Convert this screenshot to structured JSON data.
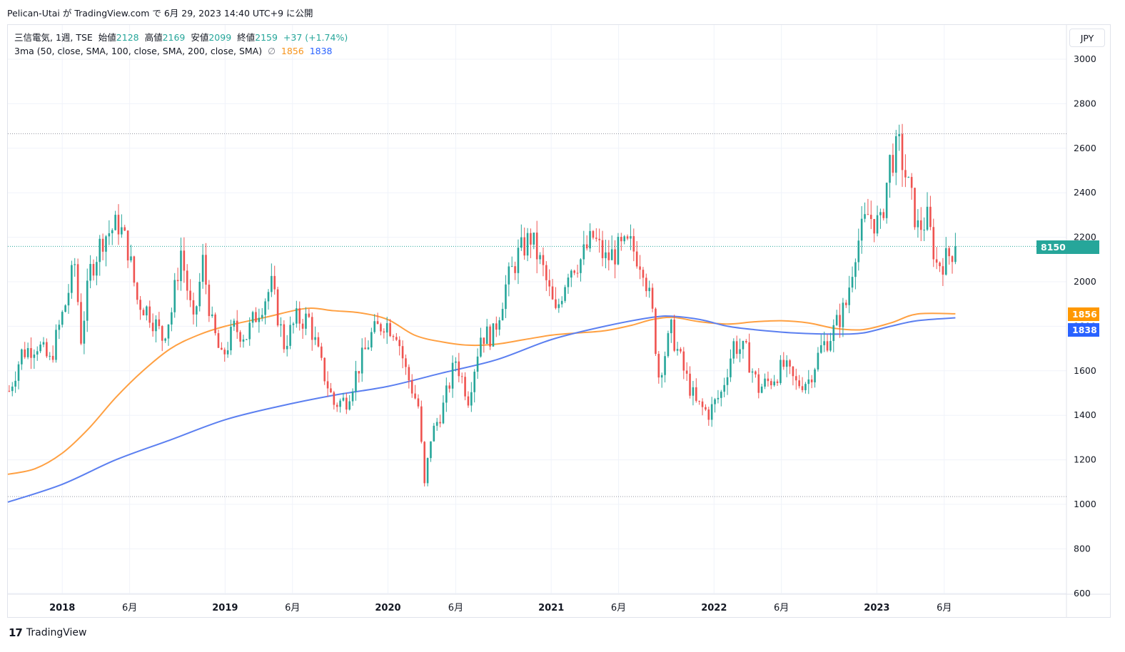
{
  "publication": "Pelican-Utai が TradingView.com で 6月 29, 2023 14:40 UTC+9 に公開",
  "legend": {
    "symbol": "三信電気, 1週, TSE",
    "open_label": "始値",
    "open": "2128",
    "high_label": "高値",
    "high": "2169",
    "low_label": "安値",
    "low": "2099",
    "close_label": "終値",
    "close": "2159",
    "change": "+37 (+1.74%)",
    "indicator": "3ma (50, close, SMA, 100, close, SMA, 200, close, SMA)",
    "hidden_icon": "∅",
    "ma100_value": "1856",
    "ma200_value": "1838"
  },
  "currency": "JPY",
  "price_tags": {
    "last_symbol": "8150",
    "last_price": "2159",
    "ma100": "1856",
    "ma200": "1838"
  },
  "brand": {
    "logo": "17",
    "name": "TradingView"
  },
  "colors": {
    "up": "#26a69a",
    "down": "#ef5350",
    "ma100": "#ffa042",
    "ma200": "#5b7ff0",
    "grid": "#f0f3fa",
    "dotted": "#9598a1"
  },
  "chart_data": {
    "type": "candlestick",
    "title": "三信電気, 1週, TSE",
    "ylim": [
      600,
      3000
    ],
    "y_ticks": [
      3000,
      2800,
      2600,
      2400,
      2200,
      2000,
      1800,
      1600,
      1400,
      1200,
      1000,
      800,
      600
    ],
    "x_ticks": [
      {
        "date": "2018-01-01",
        "label": "2018",
        "bold": true
      },
      {
        "date": "2018-06-01",
        "label": "6月",
        "bold": false
      },
      {
        "date": "2019-01-01",
        "label": "2019",
        "bold": true
      },
      {
        "date": "2019-06-01",
        "label": "6月",
        "bold": false
      },
      {
        "date": "2020-01-01",
        "label": "2020",
        "bold": true
      },
      {
        "date": "2020-06-01",
        "label": "6月",
        "bold": false
      },
      {
        "date": "2021-01-01",
        "label": "2021",
        "bold": true
      },
      {
        "date": "2021-06-01",
        "label": "6月",
        "bold": false
      },
      {
        "date": "2022-01-01",
        "label": "2022",
        "bold": true
      },
      {
        "date": "2022-06-01",
        "label": "6月",
        "bold": false
      },
      {
        "date": "2023-01-01",
        "label": "2023",
        "bold": true
      },
      {
        "date": "2023-06-01",
        "label": "6月",
        "bold": false
      }
    ],
    "x_range": [
      "2017-09-01",
      "2024-03-01"
    ],
    "horizontal_levels": [
      2665,
      1035
    ],
    "last_price": 2159,
    "ohlc_path": [
      [
        "2017-09-04",
        1510
      ],
      [
        "2017-10-02",
        1680
      ],
      [
        "2017-11-06",
        1720
      ],
      [
        "2017-12-04",
        1640
      ],
      [
        "2018-01-08",
        1900
      ],
      [
        "2018-01-29",
        2080
      ],
      [
        "2018-02-12",
        1750
      ],
      [
        "2018-03-05",
        2050
      ],
      [
        "2018-04-02",
        2200
      ],
      [
        "2018-05-07",
        2260
      ],
      [
        "2018-05-28",
        2150
      ],
      [
        "2018-06-18",
        1920
      ],
      [
        "2018-07-16",
        1860
      ],
      [
        "2018-08-13",
        1750
      ],
      [
        "2018-09-03",
        1870
      ],
      [
        "2018-09-24",
        2140
      ],
      [
        "2018-10-22",
        1800
      ],
      [
        "2018-11-12",
        2090
      ],
      [
        "2018-12-03",
        1800
      ],
      [
        "2018-12-24",
        1650
      ],
      [
        "2019-01-21",
        1790
      ],
      [
        "2019-02-18",
        1760
      ],
      [
        "2019-03-18",
        1880
      ],
      [
        "2019-04-15",
        1980
      ],
      [
        "2019-05-13",
        1720
      ],
      [
        "2019-06-10",
        1830
      ],
      [
        "2019-07-08",
        1830
      ],
      [
        "2019-08-05",
        1620
      ],
      [
        "2019-09-02",
        1450
      ],
      [
        "2019-09-30",
        1470
      ],
      [
        "2019-10-28",
        1620
      ],
      [
        "2019-11-25",
        1760
      ],
      [
        "2019-12-23",
        1820
      ],
      [
        "2020-01-20",
        1780
      ],
      [
        "2020-02-10",
        1600
      ],
      [
        "2020-03-09",
        1440
      ],
      [
        "2020-03-23",
        1080
      ],
      [
        "2020-04-06",
        1300
      ],
      [
        "2020-05-04",
        1440
      ],
      [
        "2020-06-01",
        1650
      ],
      [
        "2020-06-29",
        1480
      ],
      [
        "2020-07-27",
        1760
      ],
      [
        "2020-08-24",
        1760
      ],
      [
        "2020-09-21",
        1980
      ],
      [
        "2020-10-19",
        2120
      ],
      [
        "2020-11-16",
        2200
      ],
      [
        "2020-12-14",
        2050
      ],
      [
        "2021-01-11",
        1850
      ],
      [
        "2021-02-08",
        2060
      ],
      [
        "2021-03-08",
        2100
      ],
      [
        "2021-04-05",
        2200
      ],
      [
        "2021-05-03",
        2100
      ],
      [
        "2021-05-31",
        2140
      ],
      [
        "2021-06-28",
        2160
      ],
      [
        "2021-07-26",
        2080
      ],
      [
        "2021-08-16",
        1850
      ],
      [
        "2021-08-30",
        1580
      ],
      [
        "2021-09-27",
        1780
      ],
      [
        "2021-10-25",
        1600
      ],
      [
        "2021-11-22",
        1450
      ],
      [
        "2021-12-20",
        1410
      ],
      [
        "2022-01-17",
        1500
      ],
      [
        "2022-02-14",
        1720
      ],
      [
        "2022-03-14",
        1680
      ],
      [
        "2022-04-11",
        1520
      ],
      [
        "2022-05-09",
        1560
      ],
      [
        "2022-06-06",
        1620
      ],
      [
        "2022-07-04",
        1540
      ],
      [
        "2022-08-01",
        1560
      ],
      [
        "2022-08-29",
        1700
      ],
      [
        "2022-09-26",
        1780
      ],
      [
        "2022-10-24",
        1900
      ],
      [
        "2022-11-14",
        2150
      ],
      [
        "2022-12-12",
        2300
      ],
      [
        "2023-01-09",
        2250
      ],
      [
        "2023-01-30",
        2540
      ],
      [
        "2023-02-20",
        2600
      ],
      [
        "2023-03-13",
        2420
      ],
      [
        "2023-04-03",
        2240
      ],
      [
        "2023-04-24",
        2280
      ],
      [
        "2023-05-15",
        2080
      ],
      [
        "2023-06-05",
        2100
      ],
      [
        "2023-06-26",
        2159
      ]
    ],
    "ma100": [
      [
        "2017-09-01",
        1135
      ],
      [
        "2017-11-01",
        1160
      ],
      [
        "2018-01-01",
        1230
      ],
      [
        "2018-03-01",
        1340
      ],
      [
        "2018-05-01",
        1480
      ],
      [
        "2018-07-01",
        1600
      ],
      [
        "2018-09-01",
        1700
      ],
      [
        "2018-11-01",
        1760
      ],
      [
        "2019-01-01",
        1800
      ],
      [
        "2019-04-01",
        1840
      ],
      [
        "2019-07-01",
        1880
      ],
      [
        "2019-09-01",
        1870
      ],
      [
        "2019-11-01",
        1860
      ],
      [
        "2020-01-01",
        1830
      ],
      [
        "2020-03-01",
        1760
      ],
      [
        "2020-05-01",
        1730
      ],
      [
        "2020-07-01",
        1715
      ],
      [
        "2020-09-01",
        1720
      ],
      [
        "2020-11-01",
        1740
      ],
      [
        "2021-01-01",
        1760
      ],
      [
        "2021-03-01",
        1770
      ],
      [
        "2021-05-01",
        1780
      ],
      [
        "2021-07-01",
        1805
      ],
      [
        "2021-08-15",
        1830
      ],
      [
        "2021-10-01",
        1840
      ],
      [
        "2021-12-01",
        1820
      ],
      [
        "2022-02-01",
        1810
      ],
      [
        "2022-04-01",
        1820
      ],
      [
        "2022-06-01",
        1825
      ],
      [
        "2022-08-01",
        1815
      ],
      [
        "2022-10-01",
        1790
      ],
      [
        "2022-12-01",
        1785
      ],
      [
        "2023-02-01",
        1815
      ],
      [
        "2023-04-01",
        1855
      ],
      [
        "2023-06-26",
        1856
      ]
    ],
    "ma200": [
      [
        "2017-09-01",
        1010
      ],
      [
        "2018-01-01",
        1090
      ],
      [
        "2018-05-01",
        1200
      ],
      [
        "2018-09-01",
        1290
      ],
      [
        "2019-01-01",
        1380
      ],
      [
        "2019-05-01",
        1440
      ],
      [
        "2019-09-01",
        1490
      ],
      [
        "2020-01-01",
        1530
      ],
      [
        "2020-05-01",
        1590
      ],
      [
        "2020-09-01",
        1650
      ],
      [
        "2021-01-01",
        1740
      ],
      [
        "2021-05-01",
        1800
      ],
      [
        "2021-08-15",
        1840
      ],
      [
        "2021-10-01",
        1845
      ],
      [
        "2021-12-01",
        1830
      ],
      [
        "2022-02-01",
        1800
      ],
      [
        "2022-04-01",
        1785
      ],
      [
        "2022-07-01",
        1770
      ],
      [
        "2022-10-01",
        1765
      ],
      [
        "2022-12-01",
        1770
      ],
      [
        "2023-02-01",
        1800
      ],
      [
        "2023-04-01",
        1825
      ],
      [
        "2023-06-26",
        1838
      ]
    ],
    "series": [
      {
        "name": "三信電気",
        "kind": "candles"
      },
      {
        "name": "SMA 100",
        "kind": "line",
        "color": "#ffa042"
      },
      {
        "name": "SMA 200",
        "kind": "line",
        "color": "#5b7ff0"
      }
    ]
  }
}
